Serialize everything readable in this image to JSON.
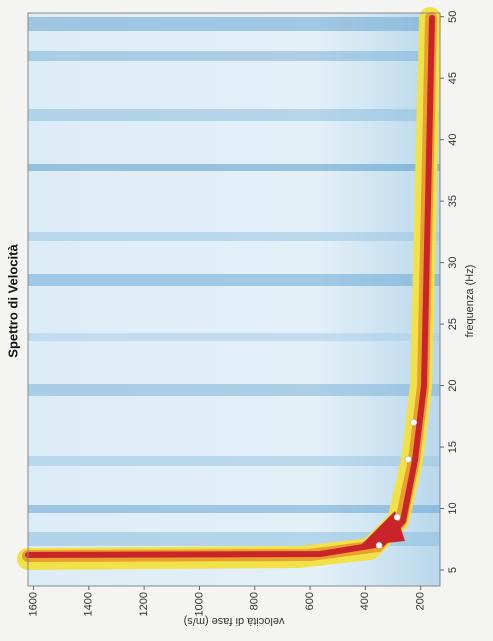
{
  "chart_data": {
    "type": "scatter",
    "title": "Spettro di Velocità",
    "x_label": "frequenza (Hz)",
    "y_label": "velocità di fase (m/s)",
    "series": [
      {
        "name": null,
        "color": "#ffffff",
        "x": [
          7,
          9.3,
          14,
          17
        ],
        "values": [
          350,
          285,
          245,
          225
        ]
      }
    ],
    "xlim": [
      3.7,
      50.3
    ],
    "xticks": [
      5,
      10,
      15,
      20,
      25,
      30,
      35,
      40,
      45,
      50
    ],
    "ylim": [
      130,
      1620
    ],
    "yticks": [
      200,
      400,
      600,
      800,
      1000,
      1200,
      1400,
      1600
    ],
    "grid": false
  }
}
